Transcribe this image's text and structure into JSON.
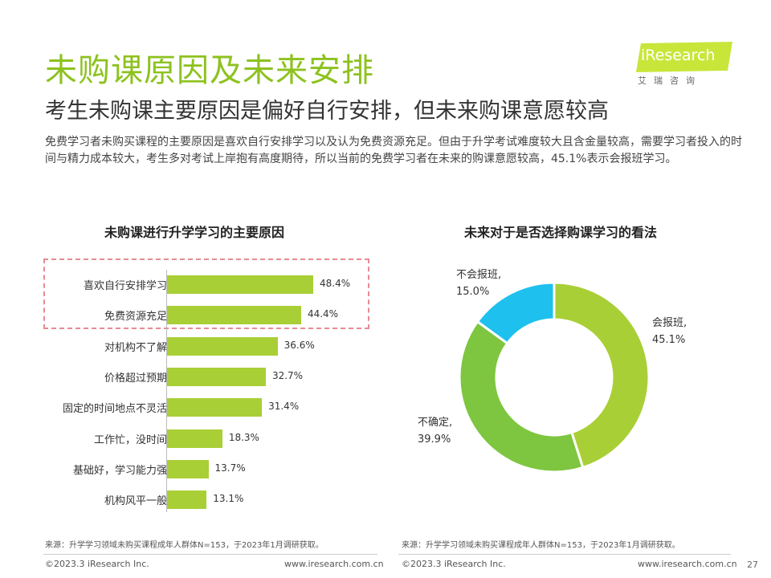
{
  "header": {
    "title": "未购课原因及未来安排",
    "subtitle": "考生未购课主要原因是偏好自行安排，但未来购课意愿较高",
    "summary": "免费学习者未购买课程的主要原因是喜欢自行安排学习以及认为免费资源充足。但由于升学考试难度较大且含金量较高，需要学习者投入的时间与精力成本较大，考生多对考试上岸抱有高度期待，所以当前的免费学习者在未来的购课意愿较高，45.1%表示会报班学习。"
  },
  "logo": {
    "text": "iResearch",
    "sub": "艾瑞咨询",
    "color": "#c8e63a"
  },
  "colors": {
    "title_green": "#8dc21f",
    "bar_green": "#a9cf36",
    "highlight_red": "#e88a93"
  },
  "chart_data": [
    {
      "type": "bar",
      "orientation": "horizontal",
      "title": "未购课进行升学学习的主要原因",
      "categories": [
        "喜欢自行安排学习",
        "免费资源充足",
        "对机构不了解",
        "价格超过预期",
        "固定的时间地点不灵活",
        "工作忙，没时间",
        "基础好，学习能力强",
        "机构风平一般"
      ],
      "values": [
        48.4,
        44.4,
        36.6,
        32.7,
        31.4,
        18.3,
        13.7,
        13.1
      ],
      "value_labels": [
        "48.4%",
        "44.4%",
        "36.6%",
        "32.7%",
        "31.4%",
        "18.3%",
        "13.7%",
        "13.1%"
      ],
      "highlighted": [
        0,
        1
      ],
      "xlim": [
        0,
        60
      ],
      "color": "#a9cf36"
    },
    {
      "type": "pie",
      "donut": true,
      "title": "未来对于是否选择购课学习的看法",
      "slices": [
        {
          "label": "会报班,",
          "value": 45.1,
          "value_label": "45.1%",
          "color": "#a9cf36"
        },
        {
          "label": "不确定,",
          "value": 39.9,
          "value_label": "39.9%",
          "color": "#7ec640"
        },
        {
          "label": "不会报班,",
          "value": 15.0,
          "value_label": "15.0%",
          "color": "#1ec1ee"
        }
      ]
    }
  ],
  "footer": {
    "source_left": "来源：升学学习领域未购买课程成年人群体N=153，于2023年1月调研获取。",
    "source_right": "来源：升学学习领域未购买课程成年人群体N=153，于2023年1月调研获取。",
    "copyright_left": "©2023.3 iResearch Inc.",
    "url_left": "www.iresearch.com.cn",
    "copyright_right": "©2023.3 iResearch Inc.",
    "url_right": "www.iresearch.com.cn",
    "page_number": "27"
  }
}
